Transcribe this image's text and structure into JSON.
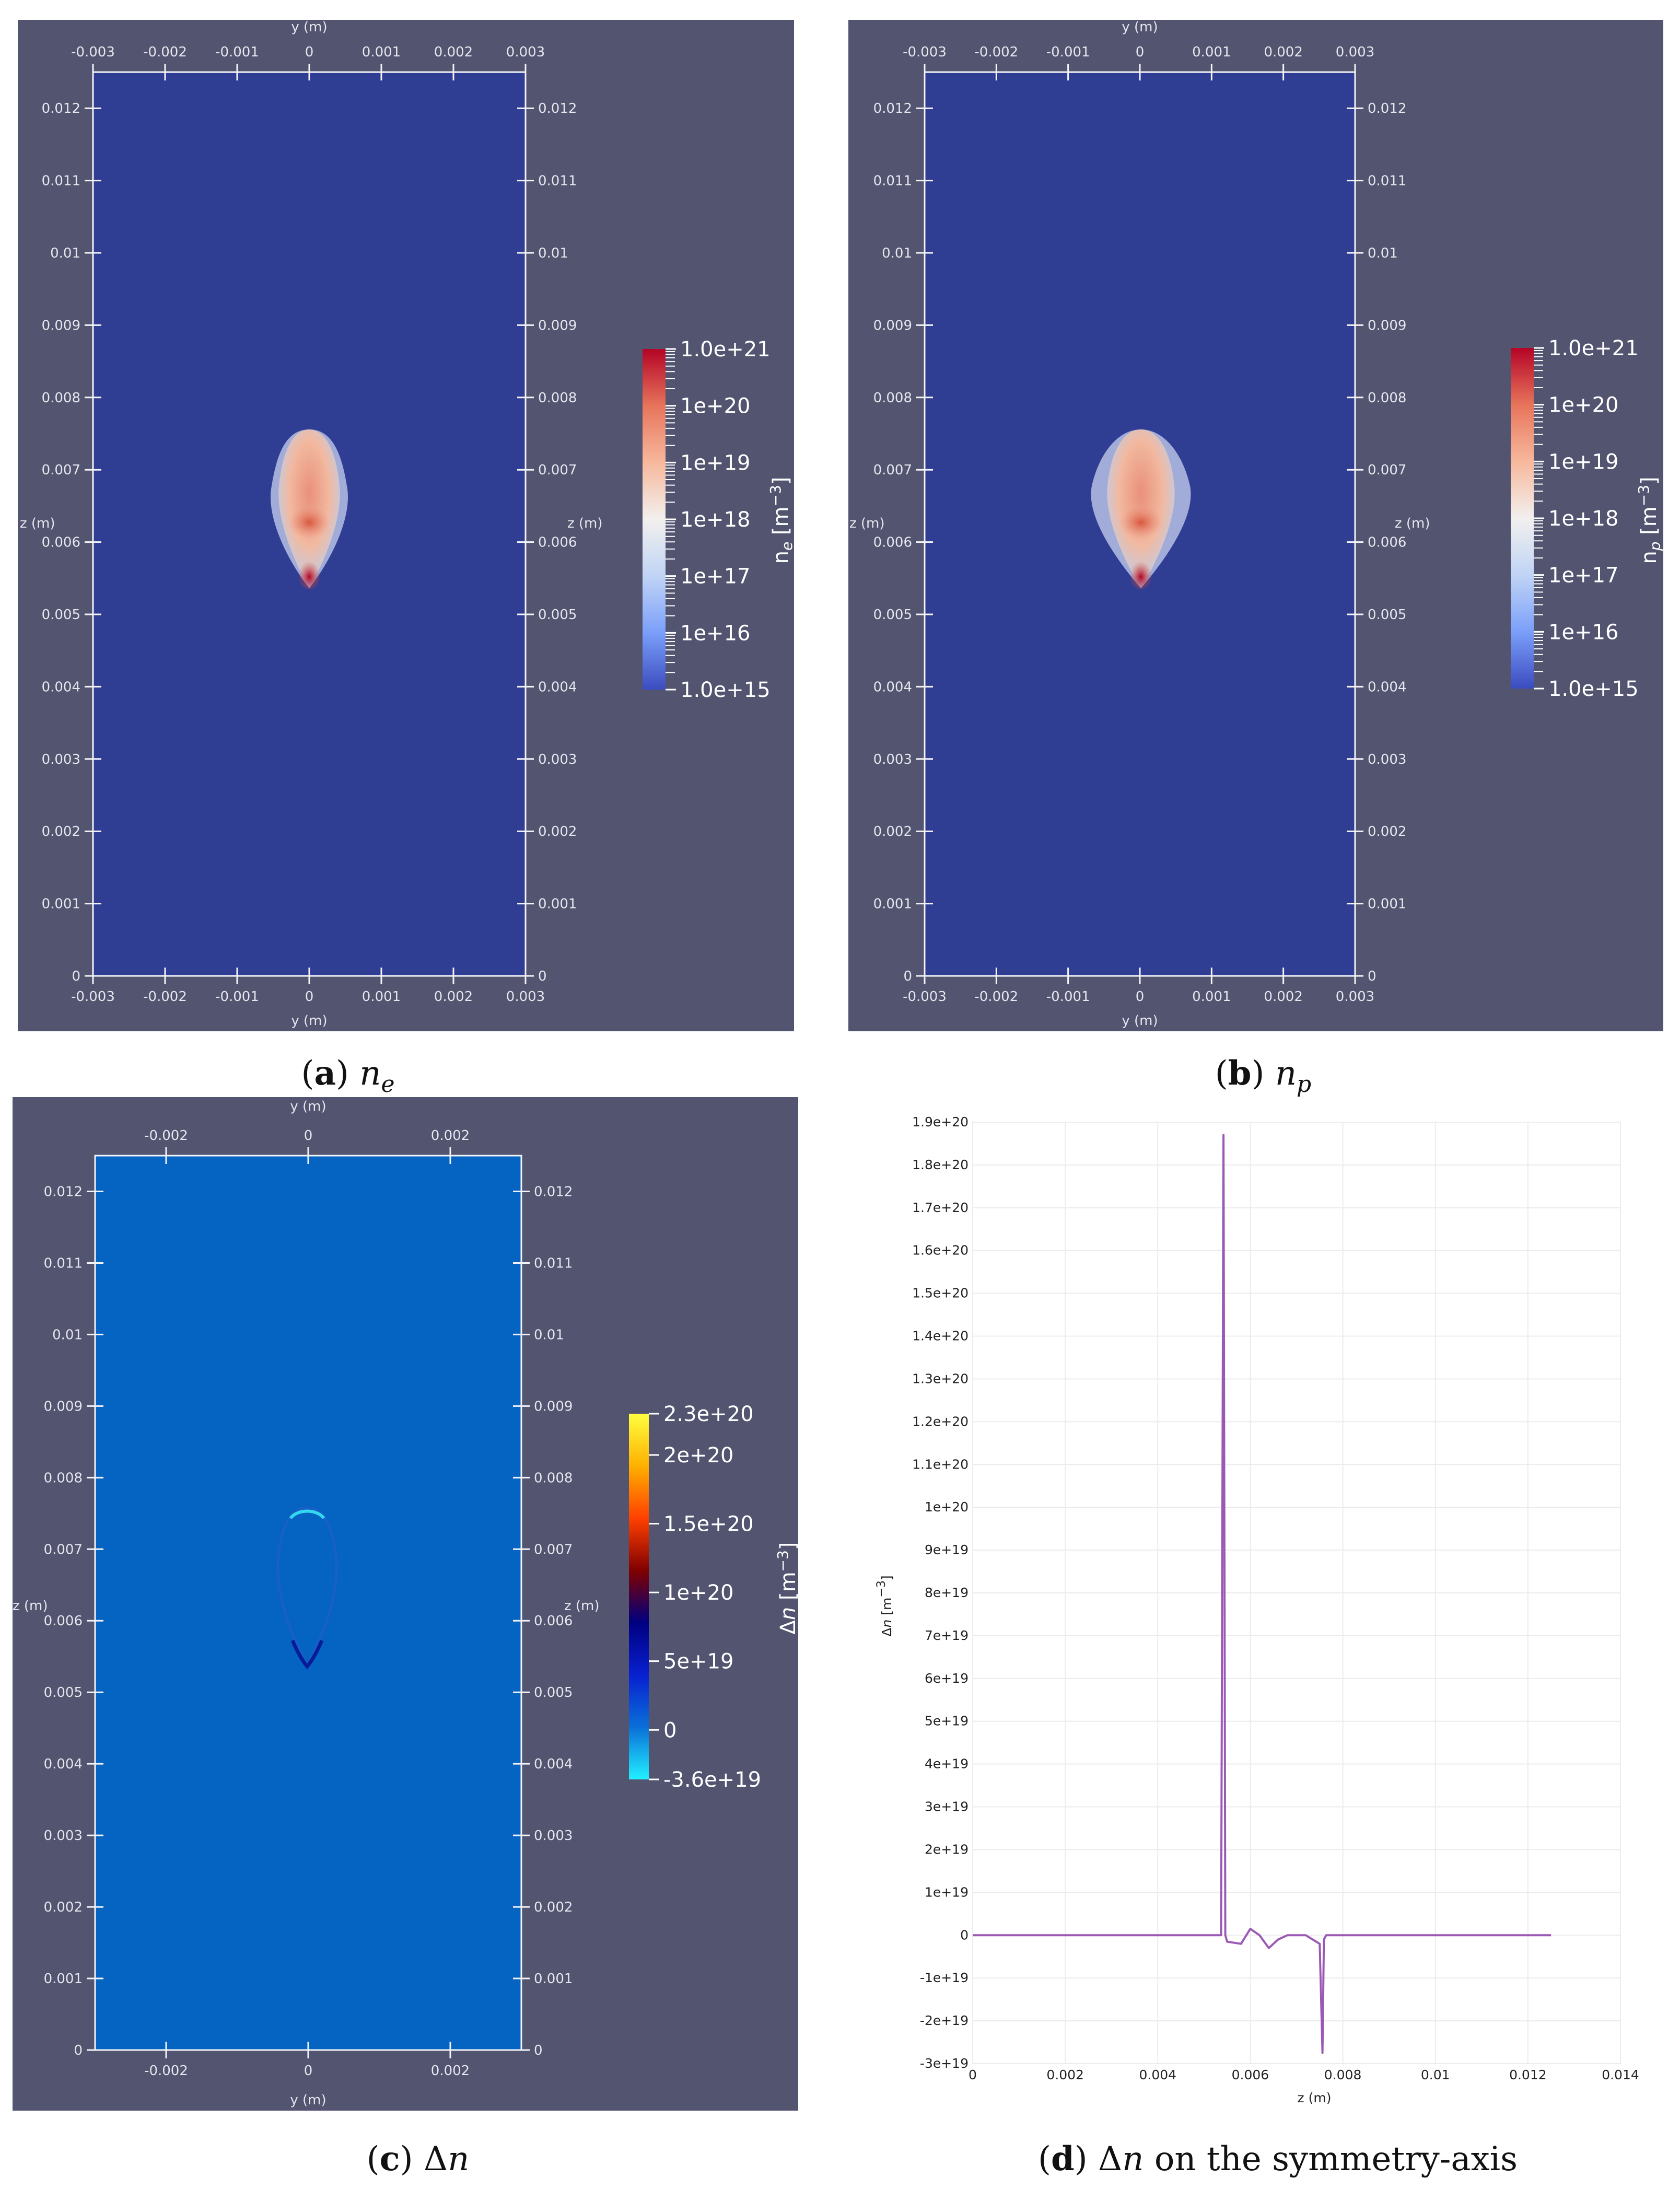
{
  "panels": [
    {
      "id": "a",
      "caption_letter": "a",
      "caption_text": "n_e",
      "x_title": "y (m)",
      "z_title": "z (m)",
      "x_ticks": [
        "-0.003",
        "-0.002",
        "-0.001",
        "0",
        "0.001",
        "0.002",
        "0.003"
      ],
      "z_ticks": [
        "0",
        "0.001",
        "0.002",
        "0.003",
        "0.004",
        "0.005",
        "0.006",
        "0.007",
        "0.008",
        "0.009",
        "0.01",
        "0.011",
        "0.012"
      ],
      "colorbar": {
        "title": "n_e [m^-3]",
        "scale": "log",
        "range": [
          1000000000000000.0,
          1e+21
        ],
        "labels": [
          "1.0e+21",
          "1e+20",
          "1e+19",
          "1e+18",
          "1e+17",
          "1e+16",
          "1.0e+15"
        ],
        "colormap": [
          "#3b4cc0",
          "#7b9ff9",
          "#c0d4f5",
          "#f2f0ee",
          "#f7b89c",
          "#e7745b",
          "#b40426"
        ]
      },
      "background_color": "#2f3d93",
      "field": "plasma-ne"
    },
    {
      "id": "b",
      "caption_letter": "b",
      "caption_text": "n_p",
      "x_title": "y (m)",
      "z_title": "z (m)",
      "x_ticks": [
        "-0.003",
        "-0.002",
        "-0.001",
        "0",
        "0.001",
        "0.002",
        "0.003"
      ],
      "z_ticks": [
        "0",
        "0.001",
        "0.002",
        "0.003",
        "0.004",
        "0.005",
        "0.006",
        "0.007",
        "0.008",
        "0.009",
        "0.01",
        "0.011",
        "0.012"
      ],
      "colorbar": {
        "title": "n_p [m^-3]",
        "scale": "log",
        "range": [
          1000000000000000.0,
          1e+21
        ],
        "labels": [
          "1.0e+21",
          "1e+20",
          "1e+19",
          "1e+18",
          "1e+17",
          "1e+16",
          "1.0e+15"
        ],
        "colormap": [
          "#3b4cc0",
          "#7b9ff9",
          "#c0d4f5",
          "#f2f0ee",
          "#f7b89c",
          "#e7745b",
          "#b40426"
        ]
      },
      "background_color": "#2f3d93",
      "field": "plasma-np"
    },
    {
      "id": "c",
      "caption_letter": "c",
      "caption_text": "Δn",
      "x_title": "y (m)",
      "z_title": "z (m)",
      "x_ticks": [
        "-0.002",
        "0",
        "0.002"
      ],
      "z_ticks": [
        "0",
        "0.001",
        "0.002",
        "0.003",
        "0.004",
        "0.005",
        "0.006",
        "0.007",
        "0.008",
        "0.009",
        "0.01",
        "0.011",
        "0.012"
      ],
      "colorbar": {
        "title": "Δn [m^-3]",
        "scale": "linear",
        "range": [
          -3.6e+19,
          2.3e+20
        ],
        "labels": [
          "2.3e+20",
          "2e+20",
          "1.5e+20",
          "1e+20",
          "5e+19",
          "0",
          "-3.6e+19"
        ],
        "colormap": [
          "#22f0ff",
          "#0a6fd8",
          "#0820d0",
          "#000080",
          "#800000",
          "#ff4000",
          "#ffb000",
          "#ffff40"
        ]
      },
      "background_color": "#0563c1",
      "field": "difference"
    }
  ],
  "line_panel": {
    "caption_letter": "d",
    "caption_text": "Δn on the symmetry-axis",
    "line_color": "#9b59b6",
    "chart_data": {
      "type": "line",
      "title": "",
      "xlabel": "z (m)",
      "ylabel": "Δn [m^-3]",
      "xlim": [
        0,
        0.014
      ],
      "ylim": [
        -3e+19,
        1.9e+20
      ],
      "x_ticks": [
        "0",
        "0.002",
        "0.004",
        "0.006",
        "0.008",
        "0.01",
        "0.012",
        "0.014"
      ],
      "y_ticks": [
        "1.9e+20",
        "1.8e+20",
        "1.7e+20",
        "1.6e+20",
        "1.5e+20",
        "1.4e+20",
        "1.3e+20",
        "1.2e+20",
        "1.1e+20",
        "1e+20",
        "9e+19",
        "8e+19",
        "7e+19",
        "6e+19",
        "5e+19",
        "4e+19",
        "3e+19",
        "2e+19",
        "1e+19",
        "0",
        "-1e+19",
        "-2e+19",
        "-3e+19"
      ],
      "series": [
        {
          "name": "Δn",
          "x": [
            0,
            0.005,
            0.00537,
            0.00542,
            0.00546,
            0.0055,
            0.0058,
            0.006,
            0.0062,
            0.0064,
            0.0066,
            0.0068,
            0.0072,
            0.0075,
            0.00756,
            0.00759,
            0.00764,
            0.0078,
            0.009,
            0.0105,
            0.0125
          ],
          "y": [
            0,
            0,
            0,
            1.87e+20,
            0,
            -1.5e+18,
            -2e+18,
            1.5e+18,
            0,
            -3e+18,
            -1e+18,
            0,
            0,
            -2e+18,
            -2.75e+19,
            -1e+18,
            0,
            0,
            0,
            0,
            0
          ]
        }
      ]
    }
  }
}
